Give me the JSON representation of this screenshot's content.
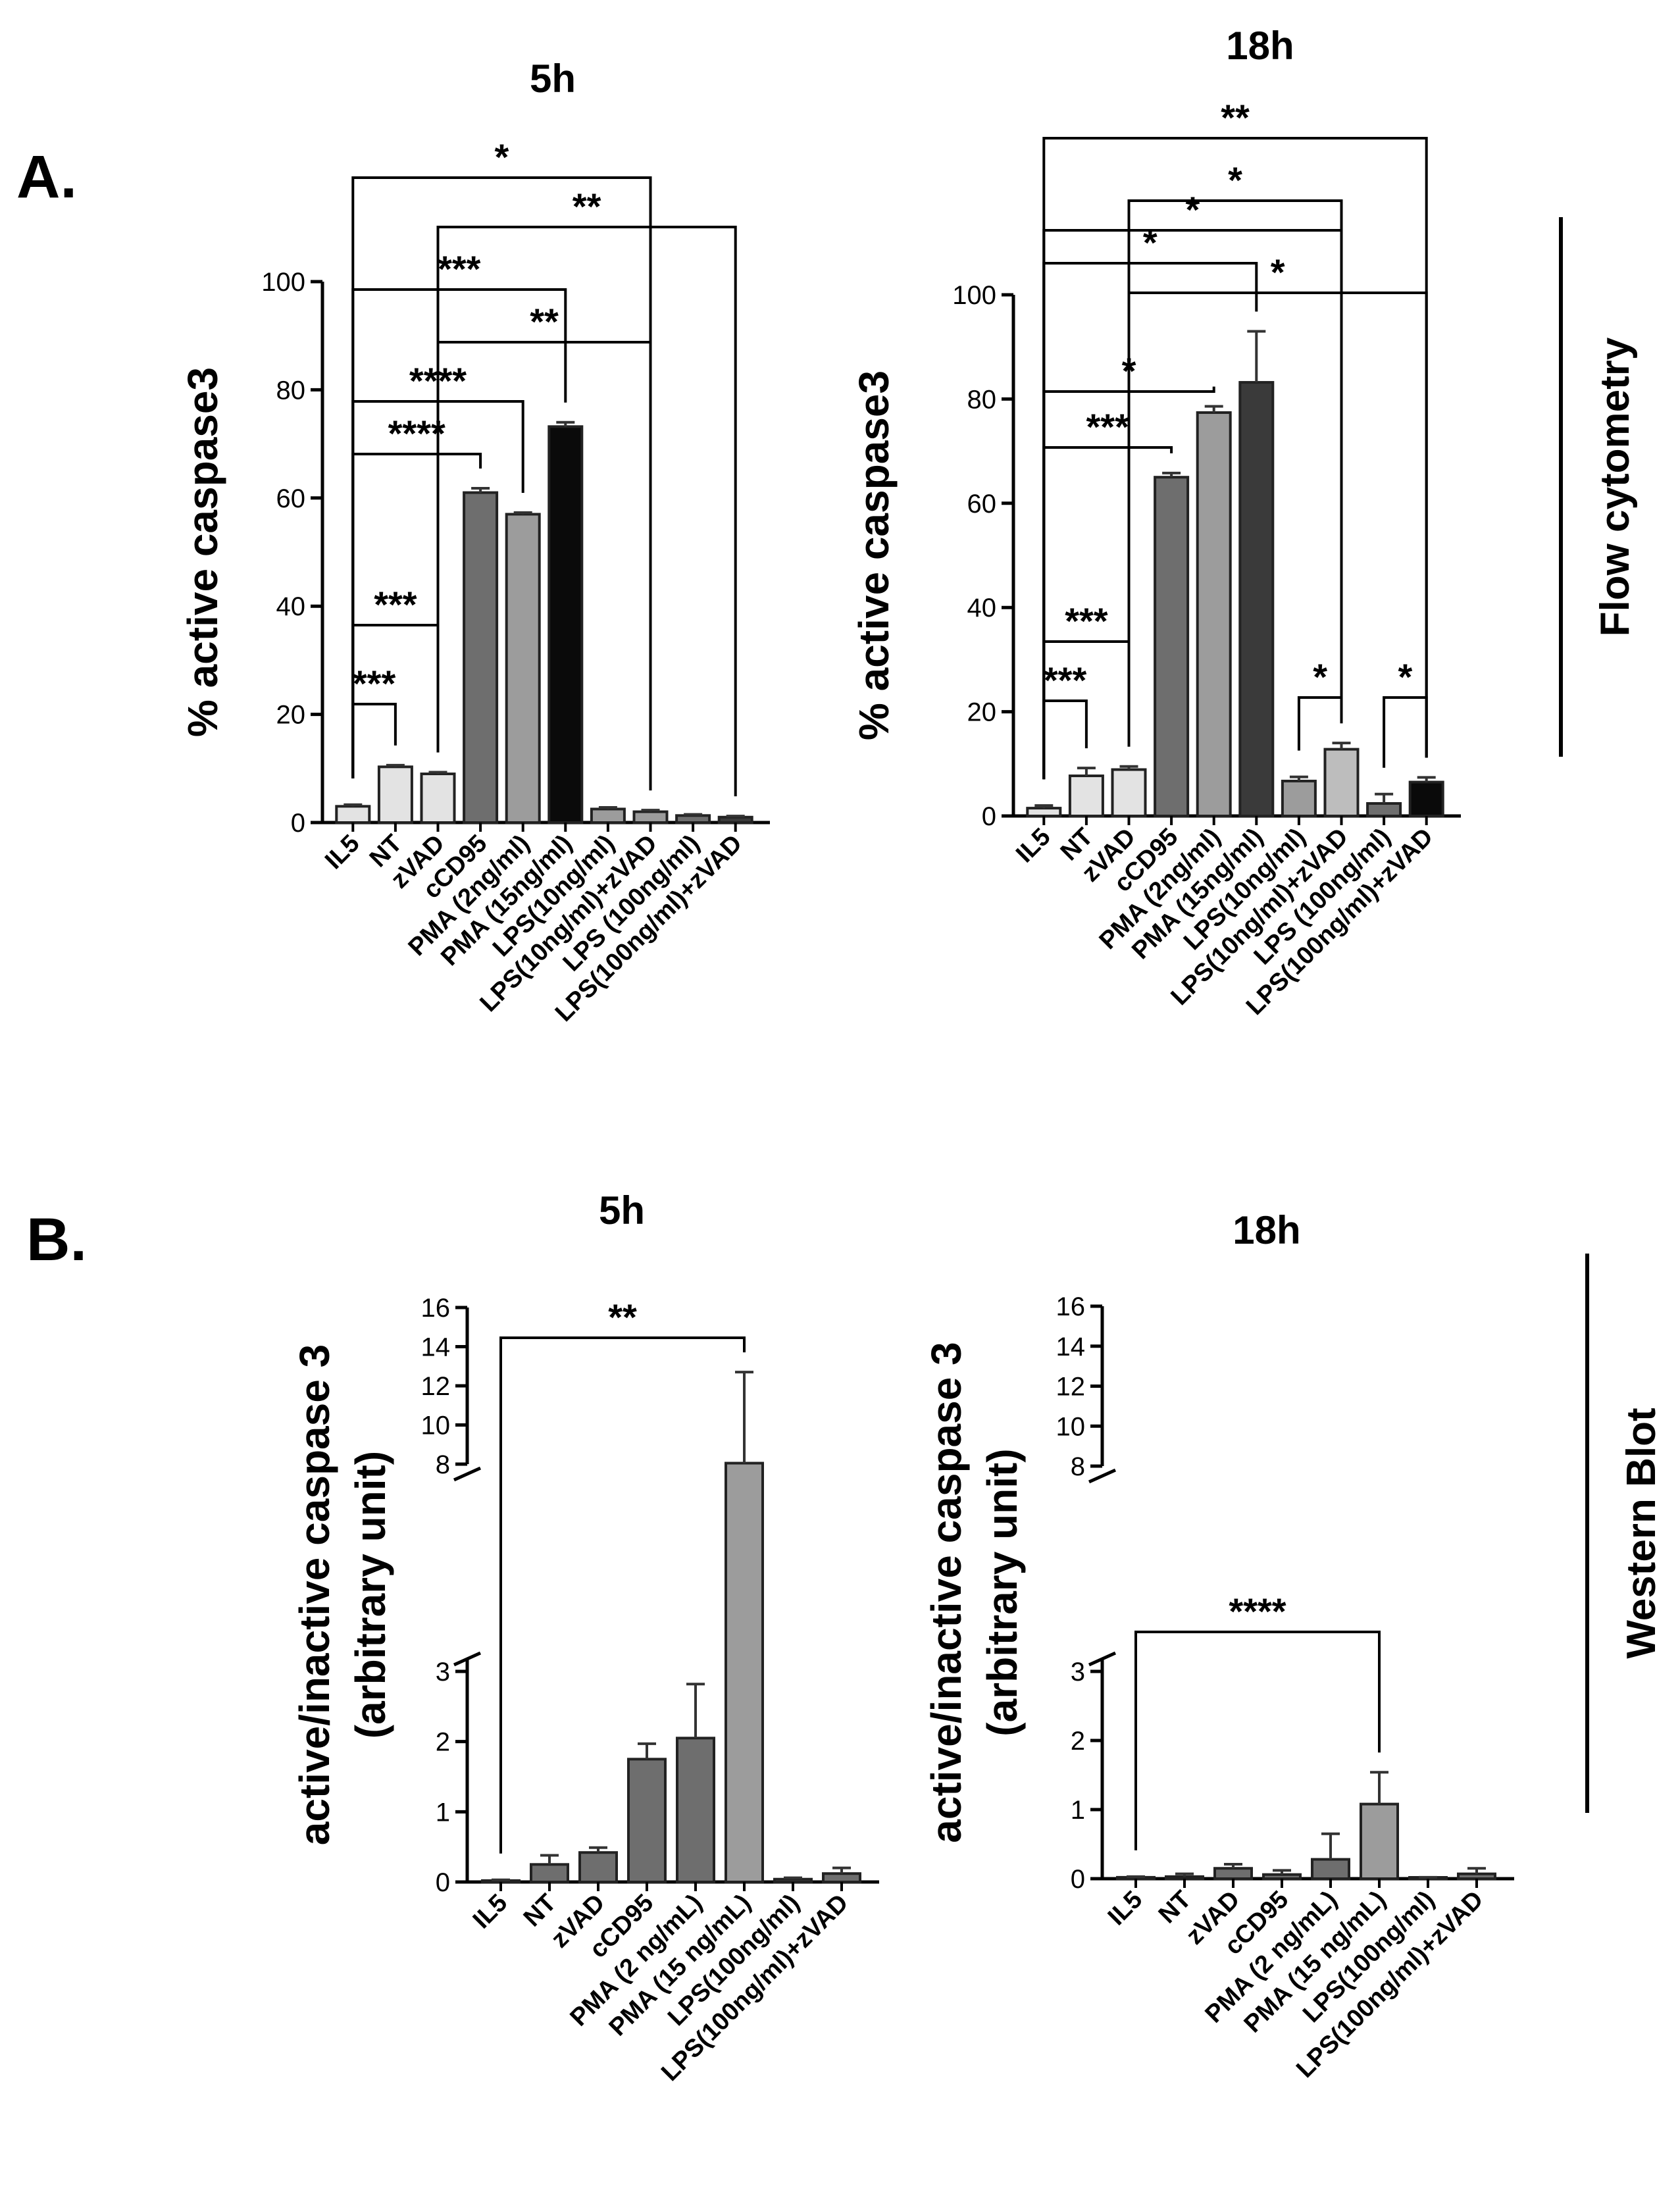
{
  "panels": {
    "a": {
      "letter": "A.",
      "side_label": "Flow cytometry"
    },
    "b": {
      "letter": "B.",
      "side_label": "Western Blot"
    }
  },
  "colors": {
    "light": "#e3e3e3",
    "mid_light": "#bdbdbd",
    "mid": "#9c9c9c",
    "mid_dark": "#6e6e6e",
    "dark": "#3a3a3a",
    "black": "#0a0a0a"
  },
  "chart_data": [
    {
      "id": "a5",
      "type": "bar",
      "title": "5h",
      "ylabel": "% active caspase3",
      "xlabel": "",
      "ylim": [
        0,
        100
      ],
      "yticks": [
        0,
        20,
        40,
        60,
        80,
        100
      ],
      "categories": [
        "IL5",
        "NT",
        "zVAD",
        "cCD95",
        "PMA (2ng/ml)",
        "PMA (15ng/ml)",
        "LPS(10ng/ml)",
        "LPS(10ng/ml)+zVAD",
        "LPS (100ng/ml)",
        "LPS(100ng/ml)+zVAD"
      ],
      "values": [
        3,
        10.3,
        9,
        61,
        57,
        73.2,
        2.5,
        2,
        1.3,
        1
      ],
      "errors": [
        0.3,
        0.3,
        0.3,
        0.8,
        0.3,
        0.8,
        0.3,
        0.3,
        0.2,
        0.2
      ],
      "bar_colors": [
        "#e3e3e3",
        "#e3e3e3",
        "#e3e3e3",
        "#6e6e6e",
        "#9c9c9c",
        "#0a0a0a",
        "#9c9c9c",
        "#9c9c9c",
        "#6e6e6e",
        "#3a3a3a"
      ],
      "comparisons": [
        {
          "from": 0,
          "to": 7,
          "label": "*"
        },
        {
          "from": 2,
          "to": 9,
          "label": "**"
        },
        {
          "from": 0,
          "to": 5,
          "label": "***"
        },
        {
          "from": 2,
          "to": 7,
          "label": "**"
        },
        {
          "from": 0,
          "to": 4,
          "label": "****"
        },
        {
          "from": 0,
          "to": 3,
          "label": "****"
        },
        {
          "from": 0,
          "to": 2,
          "label": "***"
        },
        {
          "from": 0,
          "to": 1,
          "label": "***"
        }
      ]
    },
    {
      "id": "a18",
      "type": "bar",
      "title": "18h",
      "ylabel": "% active caspase3",
      "xlabel": "",
      "ylim": [
        0,
        100
      ],
      "yticks": [
        0,
        20,
        40,
        60,
        80,
        100
      ],
      "categories": [
        "IL5",
        "NT",
        "zVAD",
        "cCD95",
        "PMA (2ng/ml)",
        "PMA (15ng/ml)",
        "LPS(10ng/ml)",
        "LPS(10ng/ml)+zVAD",
        "LPS (100ng/ml)",
        "LPS(100ng/ml)+zVAD"
      ],
      "values": [
        1.5,
        7.7,
        8.9,
        65,
        77.4,
        83.2,
        6.7,
        12.8,
        2.4,
        6.5
      ],
      "errors": [
        0.5,
        1.5,
        0.6,
        0.8,
        1.2,
        9.8,
        0.8,
        1.2,
        1.8,
        0.9
      ],
      "bar_colors": [
        "#e3e3e3",
        "#e3e3e3",
        "#e3e3e3",
        "#6e6e6e",
        "#9c9c9c",
        "#3a3a3a",
        "#9c9c9c",
        "#bdbdbd",
        "#6e6e6e",
        "#0a0a0a"
      ],
      "comparisons": [
        {
          "from": 0,
          "to": 9,
          "label": "**"
        },
        {
          "from": 2,
          "to": 7,
          "label": "*"
        },
        {
          "from": 0,
          "to": 7,
          "label": "*"
        },
        {
          "from": 0,
          "to": 5,
          "label": "*"
        },
        {
          "from": 2,
          "to": 9,
          "label": "*"
        },
        {
          "from": 0,
          "to": 4,
          "label": "*"
        },
        {
          "from": 0,
          "to": 3,
          "label": "***"
        },
        {
          "from": 0,
          "to": 2,
          "label": "***"
        },
        {
          "from": 0,
          "to": 1,
          "label": "***"
        },
        {
          "from": 6,
          "to": 7,
          "label": "*"
        },
        {
          "from": 8,
          "to": 9,
          "label": "*"
        }
      ]
    },
    {
      "id": "b5",
      "type": "bar",
      "title": "5h",
      "ylabel": "active/inactive caspase 3",
      "ylabel2": "(arbitrary unit)",
      "xlabel": "",
      "ylim": [
        0,
        16
      ],
      "axis_break": [
        3,
        8
      ],
      "yticks": [
        0,
        1,
        2,
        3,
        8,
        10,
        12,
        14,
        16
      ],
      "categories": [
        "IL5",
        "NT",
        "zVAD",
        "cCD95",
        "PMA (2 ng/mL)",
        "PMA (15 ng/mL)",
        "LPS(100ng/ml)",
        "LPS(100ng/ml)+zVAD"
      ],
      "values": [
        0.02,
        0.25,
        0.42,
        1.75,
        2.05,
        8.05,
        0.04,
        0.12
      ],
      "errors": [
        0.01,
        0.13,
        0.07,
        0.22,
        0.77,
        4.65,
        0.02,
        0.08
      ],
      "bar_colors": [
        "#6e6e6e",
        "#6e6e6e",
        "#6e6e6e",
        "#6e6e6e",
        "#6e6e6e",
        "#9c9c9c",
        "#6e6e6e",
        "#6e6e6e"
      ],
      "comparisons": [
        {
          "from": 0,
          "to": 5,
          "label": "**"
        }
      ]
    },
    {
      "id": "b18",
      "type": "bar",
      "title": "18h",
      "ylabel": "active/inactive caspase 3",
      "ylabel2": "(arbitrary unit)",
      "xlabel": "",
      "ylim": [
        0,
        16
      ],
      "axis_break": [
        3,
        8
      ],
      "yticks": [
        0,
        1,
        2,
        3,
        8,
        10,
        12,
        14,
        16
      ],
      "categories": [
        "IL5",
        "NT",
        "zVAD",
        "cCD95",
        "PMA (2 ng/mL)",
        "PMA (15 ng/mL)",
        "LPS(100ng/ml)",
        "LPS(100ng/ml)+zVAD"
      ],
      "values": [
        0.02,
        0.03,
        0.15,
        0.06,
        0.28,
        1.08,
        0.01,
        0.07
      ],
      "errors": [
        0.01,
        0.04,
        0.06,
        0.06,
        0.37,
        0.46,
        0.01,
        0.08
      ],
      "bar_colors": [
        "#6e6e6e",
        "#6e6e6e",
        "#6e6e6e",
        "#6e6e6e",
        "#6e6e6e",
        "#9c9c9c",
        "#6e6e6e",
        "#6e6e6e"
      ],
      "comparisons": [
        {
          "from": 0,
          "to": 5,
          "label": "****"
        }
      ]
    }
  ]
}
